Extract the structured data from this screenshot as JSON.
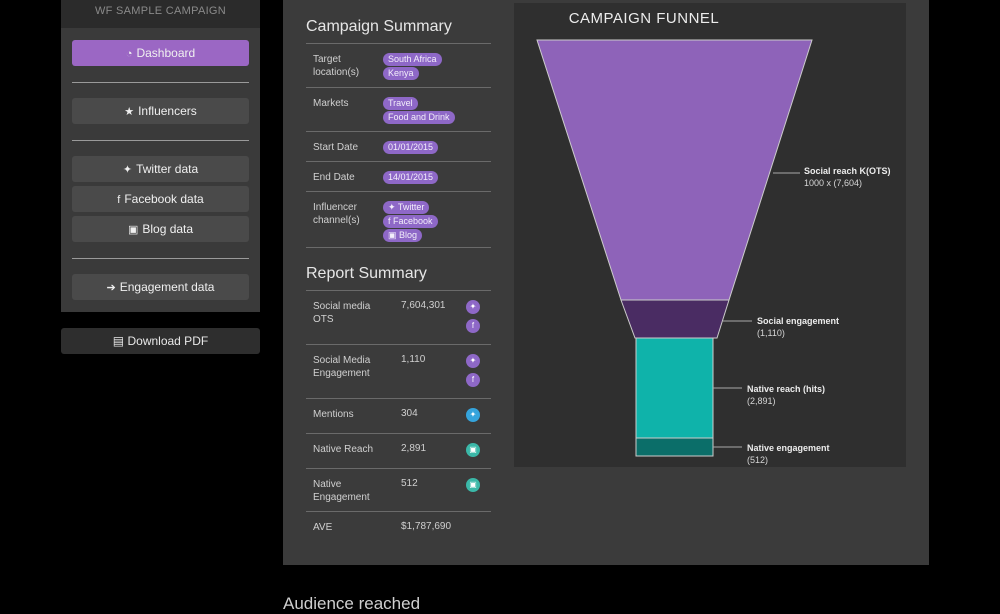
{
  "sidebar": {
    "header": "WF SAMPLE CAMPAIGN",
    "items": [
      {
        "label": "Dashboard",
        "icon": "dashboard-icon",
        "glyph": "◔"
      },
      {
        "label": "Influencers",
        "icon": "star-icon",
        "glyph": "★"
      },
      {
        "label": "Twitter data",
        "icon": "twitter-icon",
        "glyph": "✦"
      },
      {
        "label": "Facebook data",
        "icon": "facebook-icon",
        "glyph": "f"
      },
      {
        "label": "Blog data",
        "icon": "html5-icon",
        "glyph": "▣"
      },
      {
        "label": "Engagement data",
        "icon": "sign-in-icon",
        "glyph": "➔"
      }
    ],
    "download_label": "Download PDF"
  },
  "campaign_summary": {
    "title": "Campaign Summary",
    "rows": [
      {
        "label": "Target location(s)",
        "tags": [
          "South Africa",
          "Kenya"
        ]
      },
      {
        "label": "Markets",
        "tags": [
          "Travel",
          "Food and Drink"
        ]
      },
      {
        "label": "Start Date",
        "tags": [
          "01/01/2015"
        ]
      },
      {
        "label": "End Date",
        "tags": [
          "14/01/2015"
        ]
      },
      {
        "label": "Influencer channel(s)",
        "tags": [
          "✦ Twitter",
          "f Facebook",
          "▣ Blog"
        ]
      }
    ]
  },
  "report_summary": {
    "title": "Report Summary",
    "rows": [
      {
        "label": "Social media OTS",
        "value": "7,604,301",
        "icons": [
          "twitter",
          "facebook"
        ]
      },
      {
        "label": "Social Media Engagement",
        "value": "1,110",
        "icons": [
          "twitter",
          "facebook"
        ]
      },
      {
        "label": "Mentions",
        "value": "304",
        "icons": [
          "twitter-blue"
        ]
      },
      {
        "label": "Native Reach",
        "value": "2,891",
        "icons": [
          "html5"
        ]
      },
      {
        "label": "Native Engagement",
        "value": "512",
        "icons": [
          "html5"
        ]
      },
      {
        "label": "AVE",
        "value": "$1,787,690",
        "icons": []
      }
    ]
  },
  "funnel": {
    "title": "CAMPAIGN FUNNEL",
    "stages": [
      {
        "name": "Social reach K(OTS)",
        "value": "1000 x (7,604)",
        "color": "#8e63b9"
      },
      {
        "name": "Social engagement",
        "value": "(1,110)",
        "color": "#4a2c63"
      },
      {
        "name": "Native reach (hits)",
        "value": "(2,891)",
        "color": "#0fb3aa"
      },
      {
        "name": "Native engagement",
        "value": "(512)",
        "color": "#0b6e69"
      }
    ]
  },
  "audience_title": "Audience reached",
  "colors": {
    "purple": "#9b67c4",
    "teal": "#0fb3aa",
    "twitter": "#8e68c7",
    "twitter_blue": "#35a4dc",
    "html5": "#3bb8a8"
  }
}
